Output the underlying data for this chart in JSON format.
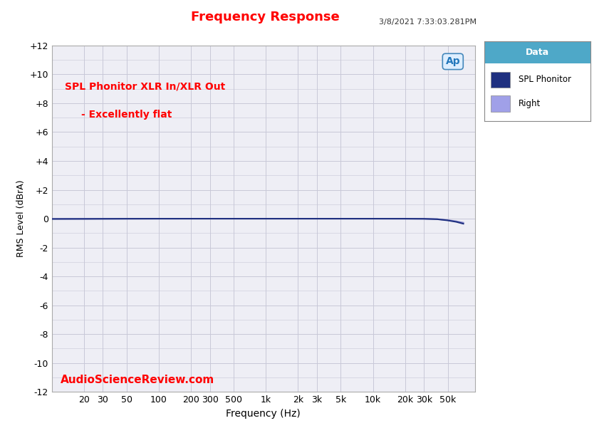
{
  "title": "Frequency Response",
  "title_color": "#FF0000",
  "title_fontsize": 13,
  "timestamp": "3/8/2021 7:33:03.281PM",
  "annotation_line1": "SPL Phonitor XLR In/XLR Out",
  "annotation_line2": "- Excellently flat",
  "annotation_color": "#FF0000",
  "watermark": "AudioScienceReview.com",
  "watermark_color": "#FF0000",
  "ylabel": "RMS Level (dBrA)",
  "xlabel": "Frequency (Hz)",
  "ylim": [
    -12,
    12
  ],
  "yticks": [
    -12,
    -10,
    -8,
    -6,
    -4,
    -2,
    0,
    2,
    4,
    6,
    8,
    10,
    12
  ],
  "ytick_labels": [
    "-12",
    "-10",
    "-8",
    "-6",
    "-4",
    "-2",
    "0",
    "+2",
    "+4",
    "+6",
    "+8",
    "+10",
    "+12"
  ],
  "xlim_log": [
    10,
    90000
  ],
  "xtick_positions": [
    20,
    30,
    50,
    100,
    200,
    300,
    500,
    1000,
    2000,
    3000,
    5000,
    10000,
    20000,
    30000,
    50000
  ],
  "xtick_labels": [
    "20",
    "30",
    "50",
    "100",
    "200",
    "300",
    "500",
    "1k",
    "2k",
    "3k",
    "5k",
    "10k",
    "20k",
    "30k",
    "50k"
  ],
  "bg_color": "#FFFFFF",
  "plot_bg_color": "#EEEEF5",
  "grid_color": "#C8C8D8",
  "legend_title": "Data",
  "legend_title_bg": "#4EA8C8",
  "legend_entries": [
    "SPL Phonitor",
    "Right"
  ],
  "legend_colors": [
    "#1F3080",
    "#A0A0E8"
  ],
  "line1_color": "#1F3080",
  "line2_color": "#8888CC",
  "line_width": 1.5,
  "spl_phonitor_data_x": [
    10,
    20,
    30,
    50,
    100,
    200,
    500,
    1000,
    2000,
    5000,
    10000,
    20000,
    30000,
    40000,
    50000,
    60000,
    70000
  ],
  "spl_phonitor_data_y": [
    -0.02,
    -0.015,
    -0.01,
    -0.005,
    -0.002,
    -0.001,
    -0.001,
    -0.001,
    -0.001,
    -0.001,
    -0.001,
    -0.003,
    -0.01,
    -0.04,
    -0.12,
    -0.22,
    -0.35
  ],
  "right_data_x": [
    10,
    20,
    30,
    50,
    100,
    200,
    500,
    1000,
    2000,
    5000,
    10000,
    20000,
    30000,
    40000,
    50000,
    60000,
    70000
  ],
  "right_data_y": [
    -0.015,
    -0.01,
    -0.008,
    -0.004,
    -0.002,
    -0.001,
    -0.001,
    -0.001,
    -0.001,
    -0.001,
    -0.001,
    -0.002,
    -0.008,
    -0.03,
    -0.1,
    -0.18,
    -0.28
  ]
}
